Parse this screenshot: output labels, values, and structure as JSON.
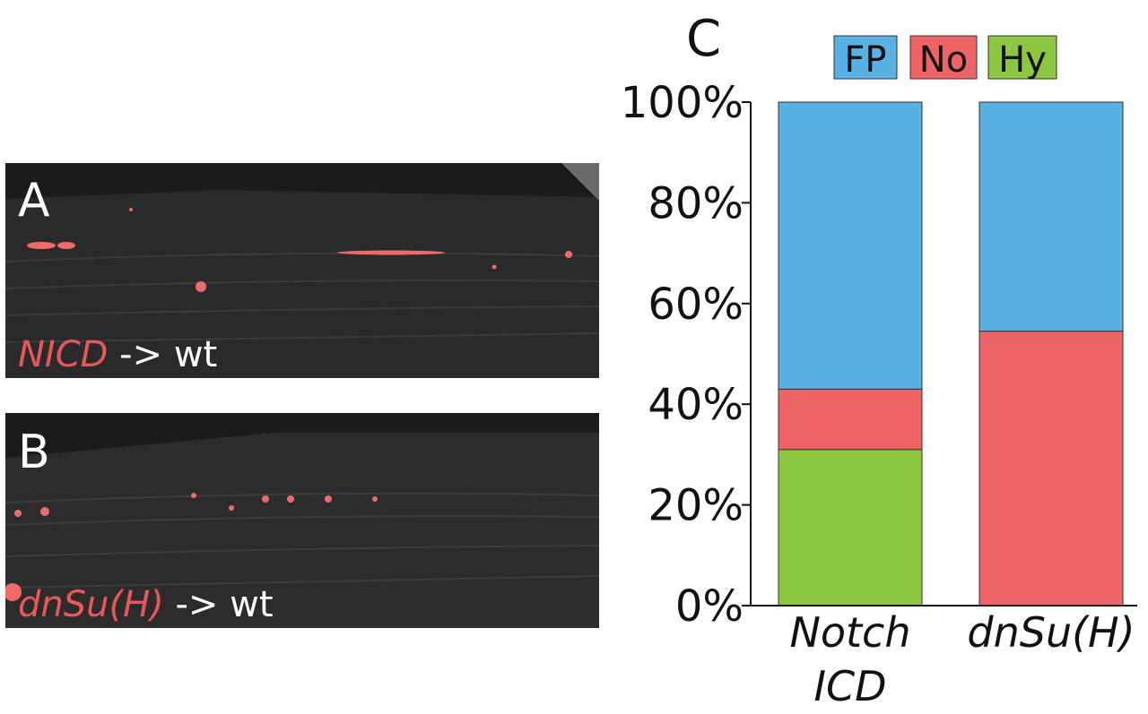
{
  "panels": {
    "a": {
      "letter": "A",
      "gene": "NICD",
      "arrow_text": " -> wt",
      "gene_color": "#e8585a"
    },
    "b": {
      "letter": "B",
      "gene": "dnSu(H)",
      "arrow_text": " -> wt",
      "gene_color": "#e8585a"
    }
  },
  "chart_data": {
    "type": "bar",
    "stacked": true,
    "panel_label": "C",
    "categories": [
      [
        "Notch",
        "ICD"
      ],
      [
        "dnSu(H)"
      ]
    ],
    "series": [
      {
        "name": "Hy",
        "color": "#8dc63f",
        "values": [
          31,
          0
        ]
      },
      {
        "name": "No",
        "color": "#ee6466",
        "values": [
          12,
          54.5
        ]
      },
      {
        "name": "FP",
        "color": "#58b0e5",
        "values": [
          57,
          45.5
        ]
      }
    ],
    "legend_order": [
      "FP",
      "No",
      "Hy"
    ],
    "legend_position": "top",
    "ylim": [
      0,
      100
    ],
    "yticks": [
      "0%",
      "20%",
      "40%",
      "60%",
      "80%",
      "100%"
    ],
    "ytick_values": [
      0,
      20,
      40,
      60,
      80,
      100
    ],
    "grid": false
  }
}
